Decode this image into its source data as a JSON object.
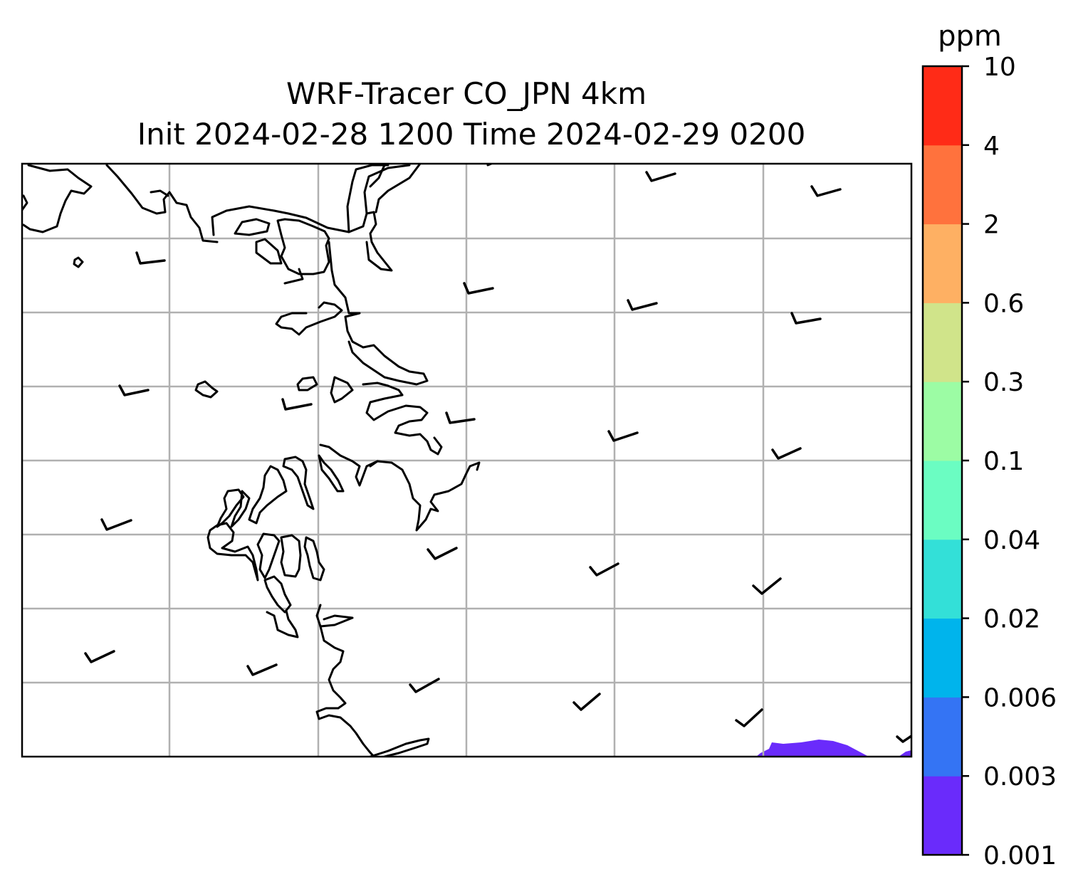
{
  "title": {
    "line1": "WRF-Tracer CO_JPN 4km",
    "line2": "Init 2024-02-28 1200 Time 2024-02-29 0200"
  },
  "colorbar": {
    "unit": "ppm",
    "levels": [
      "0.001",
      "0.003",
      "0.006",
      "0.02",
      "0.04",
      "0.1",
      "0.3",
      "0.6",
      "2",
      "4",
      "10"
    ],
    "colors": [
      "#6a2bfb",
      "#3474f4",
      "#00b4ec",
      "#33e0d8",
      "#6bfdc2",
      "#9cfca4",
      "#d0e48a",
      "#feb063",
      "#ff723d",
      "#ff2b17"
    ]
  },
  "map": {
    "field_color": "#6a2bfb",
    "grid": true
  }
}
